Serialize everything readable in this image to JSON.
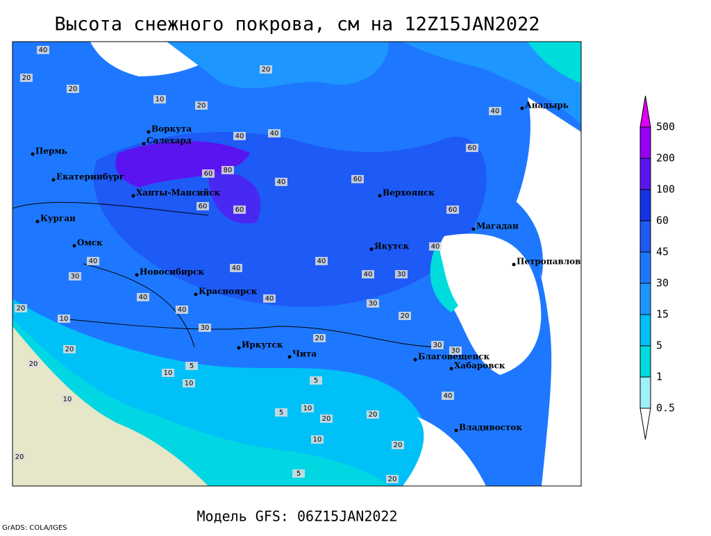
{
  "header": {
    "title": "Высота снежного покрова, см на 12Z15JAN2022"
  },
  "footer": {
    "model": "Модель GFS: 06Z15JAN2022",
    "credit": "GrADS: COLA/IGES"
  },
  "colorbar": {
    "levels": [
      0.5,
      1,
      5,
      15,
      30,
      45,
      60,
      100,
      200,
      500
    ],
    "colors": [
      "#ffffff",
      "#a0f0fa",
      "#00dcdc",
      "#00c0f8",
      "#1e96ff",
      "#1e78ff",
      "#1e5af5",
      "#1432e6",
      "#5a14f0",
      "#9600f5",
      "#dc00f5"
    ]
  },
  "cities": [
    "Анадырь",
    "Воркута",
    "Салехард",
    "Пермь",
    "Екатеринбург",
    "Ханты-Мансийск",
    "Верхоянск",
    "Курган",
    "Магадан",
    "Омск",
    "Якутск",
    "Петропавловск-Камчатский",
    "Новосибирск",
    "Красноярск",
    "Иркутск",
    "Чита",
    "Благовещенск",
    "Хабаровск",
    "Владивосток"
  ],
  "contour_labels": [
    40,
    20,
    20,
    10,
    20,
    20,
    40,
    40,
    60,
    40,
    60,
    80,
    60,
    60,
    40,
    60,
    60,
    40,
    40,
    40,
    40,
    30,
    30,
    20,
    40,
    40,
    40,
    40,
    30,
    20,
    10,
    20,
    30,
    20,
    10,
    5,
    10,
    5,
    5,
    10,
    20,
    20,
    10,
    5,
    20,
    20,
    30,
    30,
    40,
    20,
    10,
    20
  ]
}
